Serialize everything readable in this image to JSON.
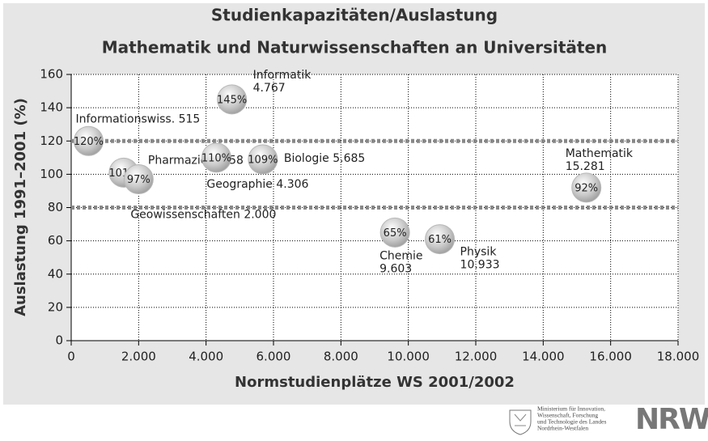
{
  "chart_data": {
    "type": "bubble",
    "title": [
      "Studienkapazitäten/Auslastung",
      "Mathematik und Naturwissenschaften an Universitäten"
    ],
    "x_label": "Normstudienplätze WS 2001/2002",
    "y_label": "Auslastung 1991–2001 (%)",
    "x": [
      515,
      1558,
      2000,
      4306,
      4767,
      5685,
      9603,
      10933,
      15281
    ],
    "values": [
      120,
      101,
      97,
      110,
      145,
      109,
      65,
      61,
      92
    ],
    "value_labels": [
      "120%",
      "101%",
      "97%",
      "110%",
      "145%",
      "109%",
      "65%",
      "61%",
      "92%"
    ],
    "point_labels": [
      [
        "Informationswiss. 515"
      ],
      [
        "Pharmazie 1.558"
      ],
      [
        "Geowissenschaften 2.000"
      ],
      [
        "Geographie 4.306"
      ],
      [
        "Informatik",
        "4.767"
      ],
      [
        "Biologie 5.685"
      ],
      [
        "Chemie",
        "9.603"
      ],
      [
        "Physik",
        "10.933"
      ],
      [
        "Mathematik",
        "15.281"
      ]
    ],
    "color": "#b8b8b8",
    "reference_lines": [
      80,
      120
    ],
    "xlim": [
      0,
      18000
    ],
    "xticks": [
      0,
      {
        "value": 2000,
        "label": "2.000"
      },
      {
        "value": 4000,
        "label": "4.000"
      },
      {
        "value": 6000,
        "label": "6.000"
      },
      {
        "value": 8000,
        "label": "8.000"
      },
      {
        "value": 10000,
        "label": "10.000"
      },
      {
        "value": 12000,
        "label": "12.000"
      },
      {
        "value": 14000,
        "label": "14.000"
      },
      {
        "value": 16000,
        "label": "16.000"
      },
      {
        "value": 18000,
        "label": "18.000"
      }
    ],
    "ylim": [
      0,
      160
    ],
    "yticks": [
      0,
      20,
      40,
      60,
      80,
      100,
      120,
      140,
      160
    ],
    "grid": true
  },
  "footer": {
    "ministry": [
      "Ministerium für Innovation,",
      "Wissenschaft, Forschung",
      "und Technologie des Landes",
      "Nordrhein-Westfalen"
    ],
    "logo": "NRW."
  }
}
